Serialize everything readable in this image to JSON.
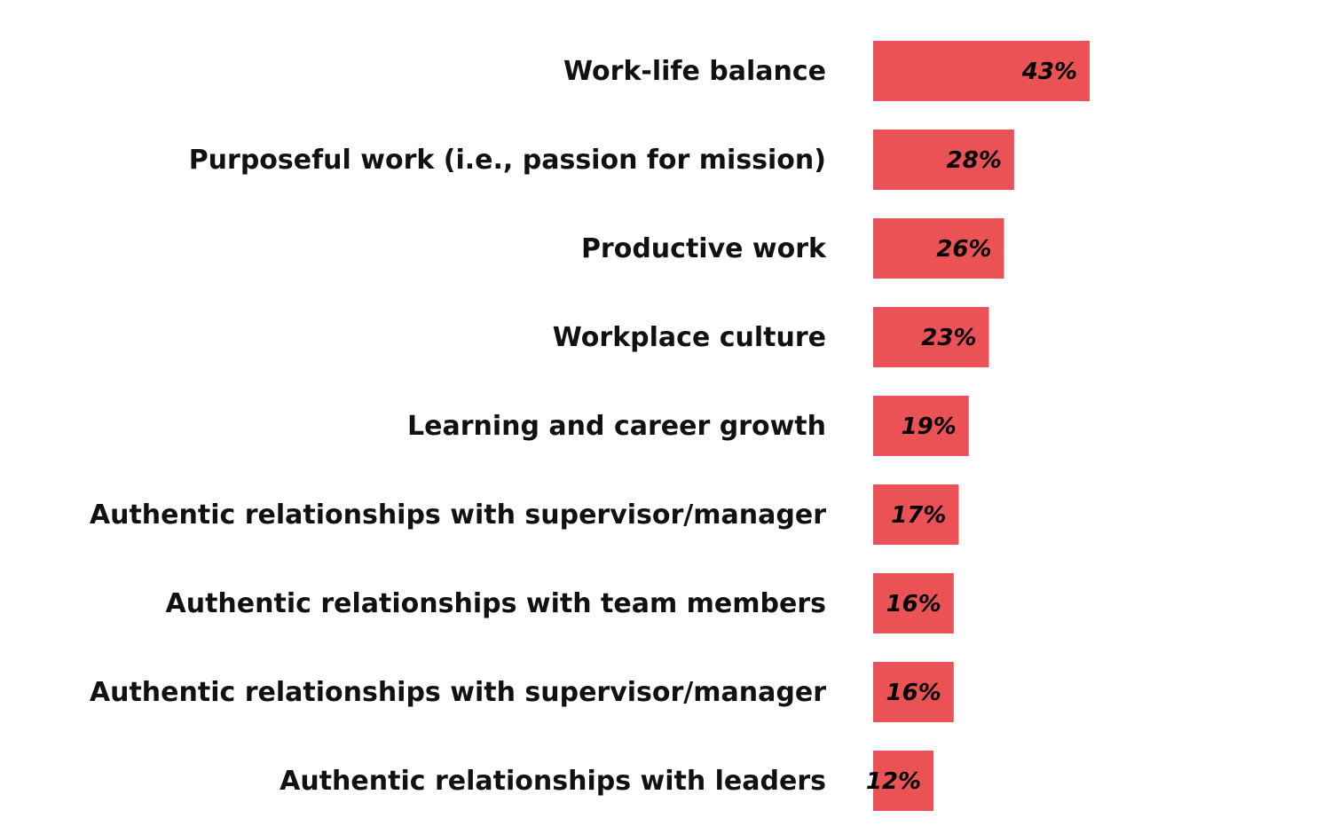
{
  "chart_data": {
    "type": "bar",
    "orientation": "horizontal",
    "categories": [
      "Work-life balance",
      "Purposeful work (i.e., passion for mission)",
      "Productive work",
      "Workplace culture",
      "Learning and career growth",
      "Authentic relationships with supervisor/manager",
      "Authentic relationships with team members",
      "Authentic relationships with supervisor/manager",
      "Authentic relationships with leaders"
    ],
    "values": [
      43,
      28,
      26,
      23,
      19,
      17,
      16,
      16,
      12
    ],
    "value_labels": [
      "43%",
      "28%",
      "26%",
      "23%",
      "19%",
      "17%",
      "16%",
      "16%",
      "12%"
    ],
    "title": "",
    "xlabel": "",
    "ylabel": "",
    "grid": false,
    "bar_color": "#eb5256",
    "label_color": "#111111"
  }
}
